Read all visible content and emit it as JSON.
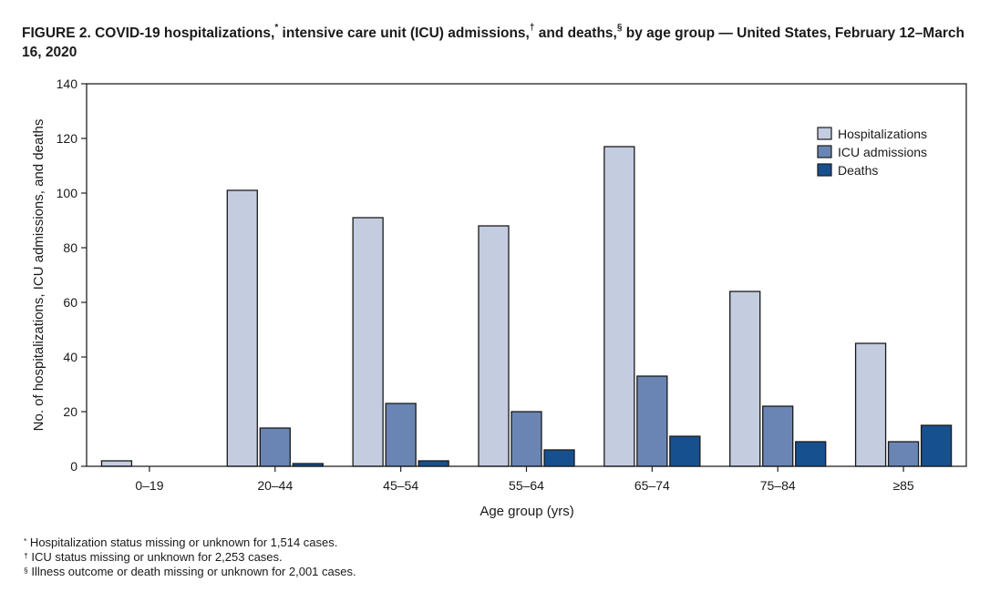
{
  "figure": {
    "title_parts": {
      "part1": "FIGURE 2. COVID-19 hospitalizations,",
      "mark1": "*",
      "part2": " intensive care unit (ICU) admissions,",
      "mark2": "†",
      "part3": " and deaths,",
      "mark3": "§",
      "part4": " by age group — United States, February 12–March 16, 2020"
    }
  },
  "chart_data": {
    "type": "bar",
    "title": "COVID-19 hospitalizations, intensive care unit (ICU) admissions, and deaths, by age group — United States, February 12–March 16, 2020",
    "xlabel": "Age group (yrs)",
    "ylabel": "No. of hospitalizations, ICU admissions, and deaths",
    "ylim": [
      0,
      140
    ],
    "yticks": [
      0,
      20,
      40,
      60,
      80,
      100,
      120,
      140
    ],
    "grid": false,
    "legend_position": "top-right",
    "categories": [
      "0–19",
      "20–44",
      "45–54",
      "55–64",
      "65–74",
      "75–84",
      "≥85"
    ],
    "series": [
      {
        "name": "Hospitalizations",
        "color": "#c4cce0",
        "values": [
          2,
          101,
          91,
          88,
          117,
          64,
          45
        ]
      },
      {
        "name": "ICU admissions",
        "color": "#6a85b3",
        "values": [
          0,
          14,
          23,
          20,
          33,
          22,
          9
        ]
      },
      {
        "name": "Deaths",
        "color": "#17508f",
        "values": [
          0,
          1,
          2,
          6,
          11,
          9,
          15
        ]
      }
    ]
  },
  "footnotes": [
    {
      "mark": "*",
      "text": " Hospitalization status missing or unknown for 1,514 cases."
    },
    {
      "mark": "†",
      "text": " ICU status missing or unknown for 2,253 cases."
    },
    {
      "mark": "§",
      "text": " Illness outcome or death missing or unknown for 2,001 cases."
    }
  ]
}
